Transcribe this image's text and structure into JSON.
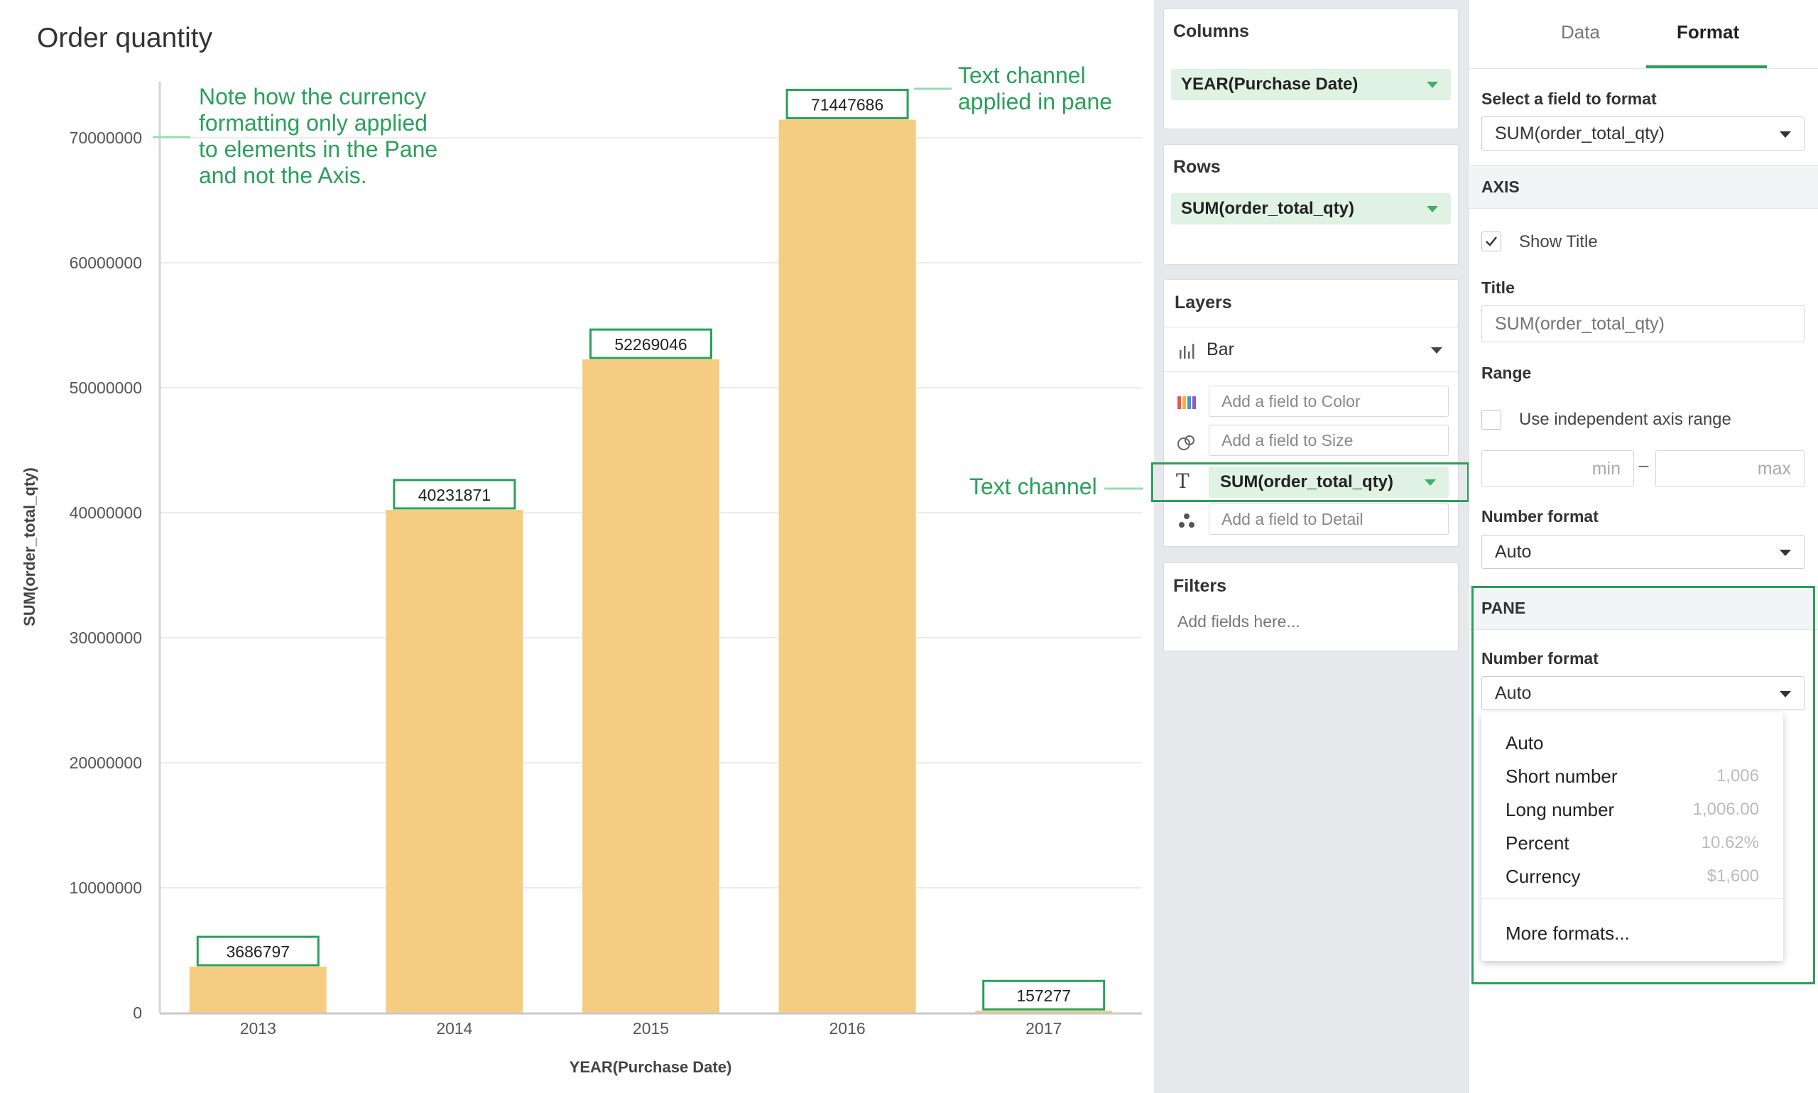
{
  "chart": {
    "title": "Order quantity",
    "xlabel": "YEAR(Purchase Date)",
    "ylabel": "SUM(order_total_qty)"
  },
  "chart_data": {
    "type": "bar",
    "categories": [
      "2013",
      "2014",
      "2015",
      "2016",
      "2017"
    ],
    "values": [
      3686797,
      40231871,
      52269046,
      71447686,
      157277
    ],
    "data_labels": [
      "3686797",
      "40231871",
      "52269046",
      "71447686",
      "157277"
    ],
    "y_ticks": [
      0,
      10000000,
      20000000,
      30000000,
      40000000,
      50000000,
      60000000,
      70000000
    ],
    "y_tick_labels": [
      "0",
      "10000000",
      "20000000",
      "30000000",
      "40000000",
      "50000000",
      "60000000",
      "70000000"
    ],
    "ylim": [
      0,
      72000000
    ],
    "title": "Order quantity",
    "xlabel": "YEAR(Purchase Date)",
    "ylabel": "SUM(order_total_qty)",
    "grid": true,
    "bar_color": "#f5cd82"
  },
  "annotations": {
    "note_lines": [
      "Note how the currency",
      "formatting only applied",
      "to elements in the Pane",
      "and not the Axis."
    ],
    "text_channel_pane_lines": [
      "Text channel",
      "applied in pane"
    ],
    "text_channel": "Text channel",
    "color": "#2aa05a"
  },
  "shelves": {
    "columns": {
      "label": "Columns",
      "pill": "YEAR(Purchase Date)"
    },
    "rows": {
      "label": "Rows",
      "pill": "SUM(order_total_qty)"
    },
    "layers": {
      "label": "Layers",
      "mark_type": "Bar",
      "mark_icon": "bar-chart-icon",
      "channels": {
        "color": {
          "icon": "color-palette-icon",
          "placeholder": "Add a field to Color"
        },
        "size": {
          "icon": "size-icon",
          "placeholder": "Add a field to Size"
        },
        "text": {
          "icon": "text-icon",
          "value": "SUM(order_total_qty)"
        },
        "detail": {
          "icon": "detail-icon",
          "placeholder": "Add a field to Detail"
        }
      }
    },
    "filters": {
      "label": "Filters",
      "placeholder": "Add fields here..."
    }
  },
  "format_panel": {
    "tabs": [
      "Data",
      "Format"
    ],
    "active_tab": "Format",
    "select_field_label": "Select a field to format",
    "selected_field": "SUM(order_total_qty)",
    "axis": {
      "section_label": "AXIS",
      "show_title_label": "Show Title",
      "show_title_checked": true,
      "title_label": "Title",
      "title_placeholder": "SUM(order_total_qty)",
      "range_label": "Range",
      "independent_range_label": "Use independent axis range",
      "independent_range_checked": false,
      "min_placeholder": "min",
      "max_placeholder": "max",
      "range_separator": "–",
      "number_format_label": "Number format",
      "number_format_value": "Auto"
    },
    "pane": {
      "section_label": "PANE",
      "number_format_label": "Number format",
      "number_format_value": "Auto"
    },
    "number_format_options": [
      {
        "label": "Auto",
        "example": ""
      },
      {
        "label": "Short number",
        "example": "1,006"
      },
      {
        "label": "Long number",
        "example": "1,006.00"
      },
      {
        "label": "Percent",
        "example": "10.62%"
      },
      {
        "label": "Currency",
        "example": "$1,600"
      }
    ],
    "more_formats_label": "More formats..."
  },
  "colors": {
    "accent_green": "#2aa05a",
    "pill_bg": "#dff2e3",
    "bar": "#f5cd82",
    "panel_bg": "#e6e8ec"
  }
}
